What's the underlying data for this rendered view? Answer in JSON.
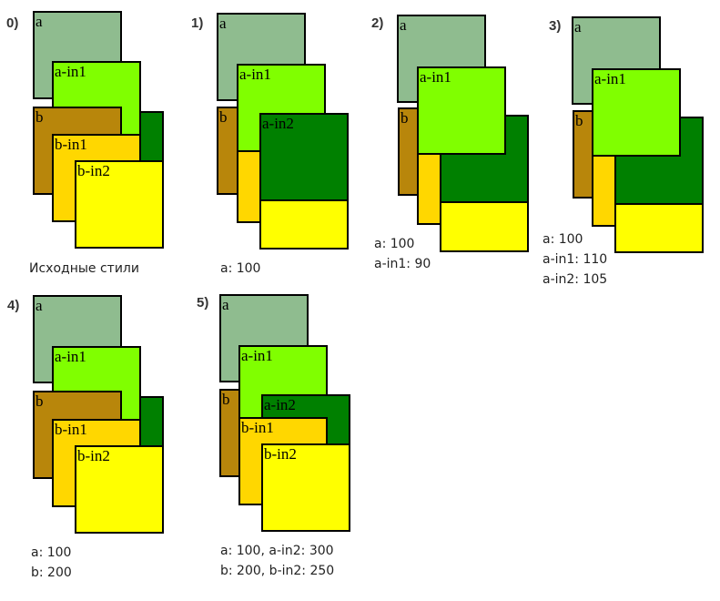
{
  "colors": {
    "a": "#8fbc8f",
    "a_in1": "#80ff00",
    "a_in2": "#008000",
    "b": "#b8860b",
    "b_in1": "#ffd700",
    "b_in2": "#ffff00"
  },
  "box_labels": {
    "a": "a",
    "a_in1": "a-in1",
    "a_in2": "a-in2",
    "b": "b",
    "b_in1": "b-in1",
    "b_in2": "b-in2"
  },
  "panels": [
    {
      "number": "0)",
      "caption": [
        "Исходные стили"
      ]
    },
    {
      "number": "1)",
      "caption": [
        "a: 100"
      ]
    },
    {
      "number": "2)",
      "caption": [
        "a: 100",
        "a-in1: 90"
      ]
    },
    {
      "number": "3)",
      "caption": [
        "a: 100",
        "a-in1: 110",
        "a-in2: 105"
      ]
    },
    {
      "number": "4)",
      "caption": [
        "a: 100",
        "b: 200"
      ]
    },
    {
      "number": "5)",
      "caption": [
        "a: 100,  a-in2: 300",
        "b: 200,  b-in2: 250"
      ]
    }
  ]
}
